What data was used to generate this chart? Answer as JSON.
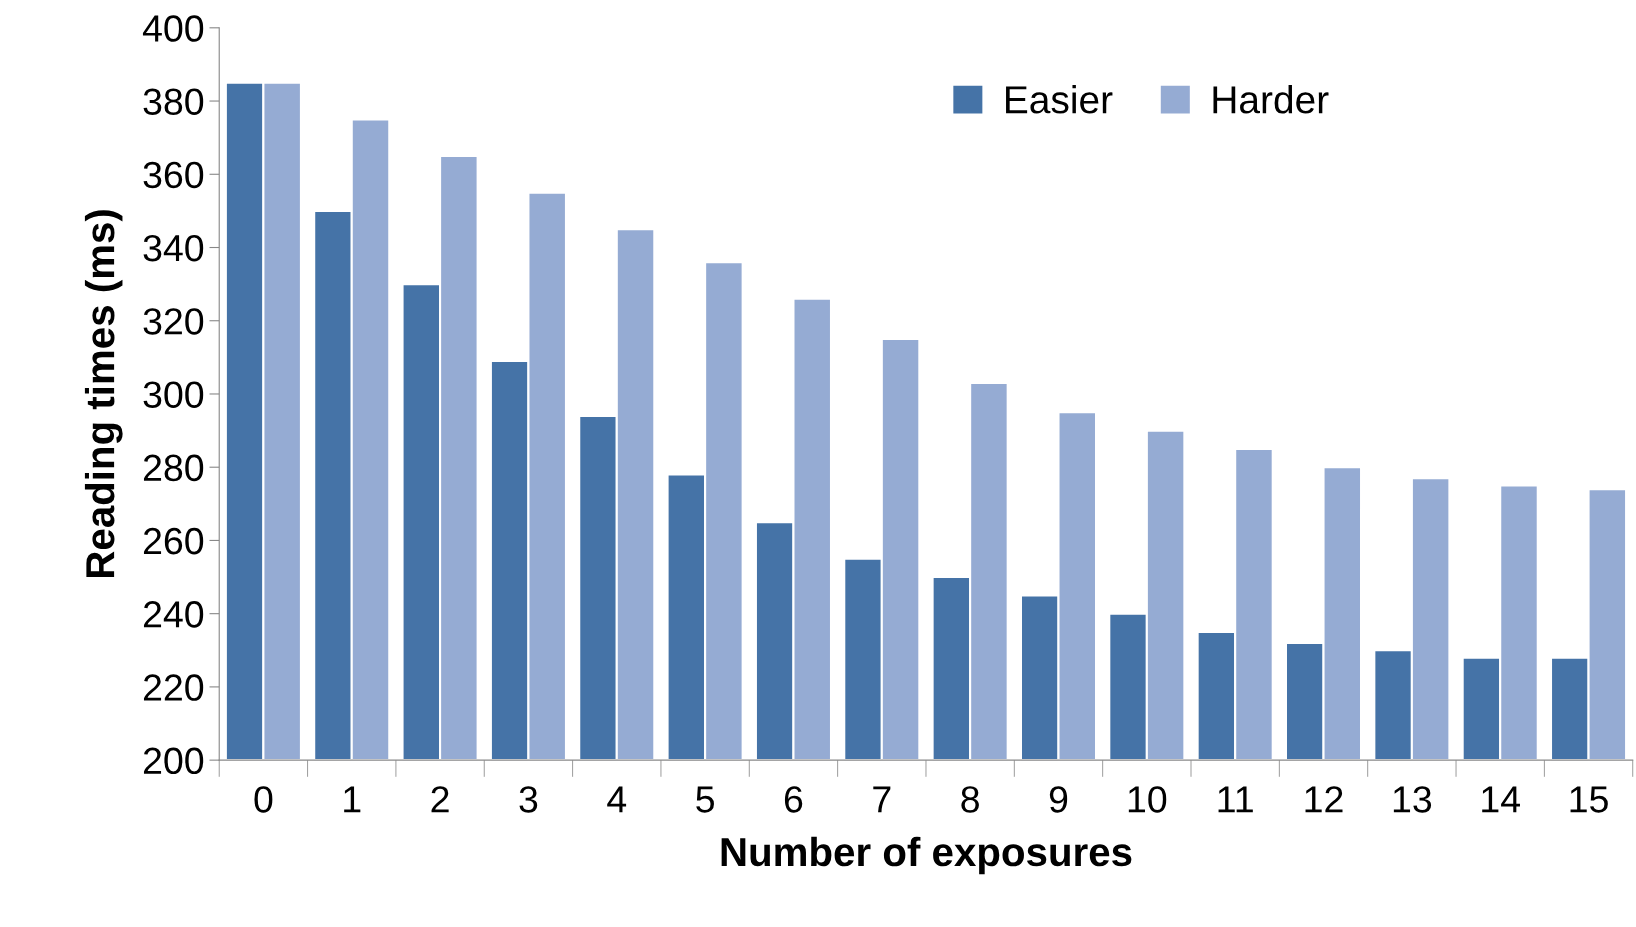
{
  "chart_data": {
    "type": "bar",
    "xlabel": "Number of exposures",
    "ylabel": "Reading times (ms)",
    "categories": [
      "0",
      "1",
      "2",
      "3",
      "4",
      "5",
      "6",
      "7",
      "8",
      "9",
      "10",
      "11",
      "12",
      "13",
      "14",
      "15"
    ],
    "series": [
      {
        "name": "Easier",
        "color": "#4573a7",
        "values": [
          385,
          350,
          330,
          309,
          294,
          278,
          265,
          255,
          250,
          245,
          240,
          235,
          232,
          230,
          228,
          228
        ]
      },
      {
        "name": "Harder",
        "color": "#95abd3",
        "values": [
          385,
          375,
          365,
          355,
          345,
          336,
          326,
          315,
          303,
          295,
          290,
          285,
          280,
          277,
          275,
          274
        ]
      }
    ],
    "ylim": [
      200,
      400
    ],
    "yticks": [
      200,
      220,
      240,
      260,
      280,
      300,
      320,
      340,
      360,
      380,
      400
    ],
    "grid": false,
    "legend": "top right"
  }
}
